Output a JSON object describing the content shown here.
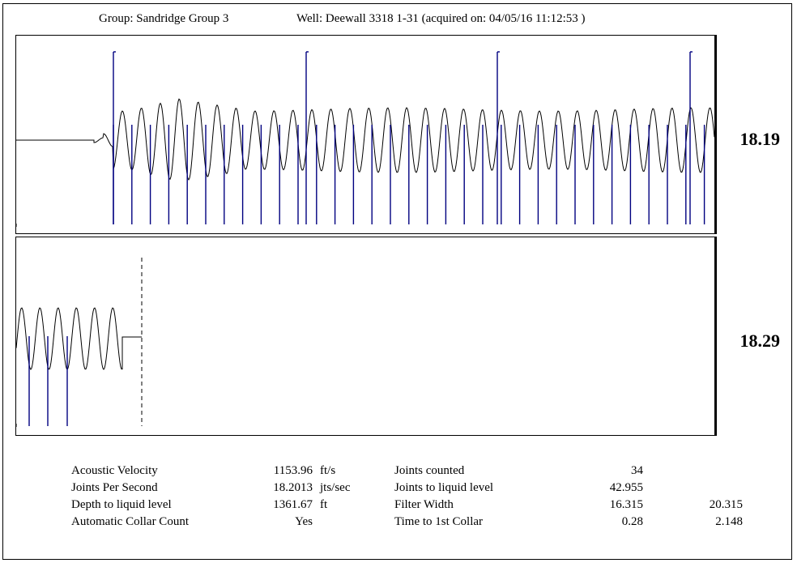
{
  "header": {
    "group": "Group: Sandridge Group 3",
    "well": "Well: Deewall 3318 1-31 (acquired on: 04/05/16 11:12:53 )"
  },
  "panels": [
    {
      "rate": "18.19"
    },
    {
      "rate": "18.29"
    }
  ],
  "stats": {
    "rows": [
      {
        "label": "Acoustic Velocity",
        "value": "1153.96",
        "unit": "ft/s",
        "label2": "Joints counted",
        "value2": "34",
        "value3": ""
      },
      {
        "label": "Joints Per Second",
        "value": "18.2013",
        "unit": "jts/sec",
        "label2": "Joints to liquid level",
        "value2": "42.955",
        "value3": ""
      },
      {
        "label": "Depth to liquid level",
        "value": "1361.67",
        "unit": "ft",
        "label2": "Filter Width",
        "value2": "16.315",
        "value3": "20.315"
      },
      {
        "label": "Automatic Collar Count",
        "value": "Yes",
        "unit": "",
        "label2": "Time to 1st Collar",
        "value2": "0.28",
        "value3": "2.148"
      }
    ]
  },
  "colors": {
    "marker": "#000080",
    "trace": "#000000",
    "background": "#ffffff"
  }
}
